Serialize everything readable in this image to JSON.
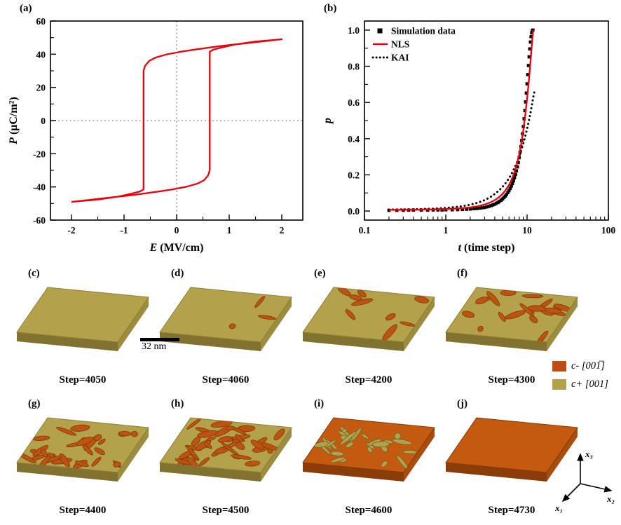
{
  "panel_labels": {
    "a": "(a)",
    "b": "(b)"
  },
  "scalebar": {
    "label": "32 nm"
  },
  "legend": {
    "items": [
      {
        "color": "#bf4c10",
        "label": "c- [001̅]"
      },
      {
        "color": "#b3a24b",
        "label": "c+ [001]"
      }
    ]
  },
  "axes_triad": {
    "x1": "x₁",
    "x2": "x₂",
    "x3": "x₃"
  },
  "colors": {
    "olive_top": "#b3a24b",
    "olive_front": "#82722f",
    "olive_side": "#9c8c3f",
    "olive_edge": "#8d7d33",
    "orange_top": "#c45a10",
    "orange_front": "#8a3d08",
    "orange_side": "#a84d0e",
    "orange_edge": "#7d3a07",
    "blob_orange": "#bc5310",
    "blob_orange_edge": "#7d3a07",
    "blob_olive": "#b3a24b",
    "blob_olive_edge": "#6e622a",
    "curve_red": "#e8000b",
    "dotted_gray": "#8a8a8a"
  },
  "panels": [
    {
      "id": "c",
      "label": "(c)",
      "step": "Step=4050",
      "base": "olive",
      "blobs": 0,
      "seed": 1
    },
    {
      "id": "d",
      "label": "(d)",
      "step": "Step=4060",
      "base": "olive",
      "blobs": 3,
      "seed": 7
    },
    {
      "id": "e",
      "label": "(e)",
      "step": "Step=4200",
      "base": "olive",
      "blobs": 9,
      "seed": 5
    },
    {
      "id": "f",
      "label": "(f)",
      "step": "Step=4300",
      "base": "olive",
      "blobs": 20,
      "seed": 11
    },
    {
      "id": "g",
      "label": "(g)",
      "step": "Step=4400",
      "base": "olive",
      "blobs": 30,
      "seed": 13
    },
    {
      "id": "h",
      "label": "(h)",
      "step": "Step=4500",
      "base": "olive",
      "blobs": 42,
      "seed": 17
    },
    {
      "id": "i",
      "label": "(i)",
      "step": "Step=4600",
      "base": "orange",
      "blobs": 28,
      "seed": 23
    },
    {
      "id": "j",
      "label": "(j)",
      "step": "Step=4730",
      "base": "orange",
      "blobs": 0,
      "seed": 29
    }
  ],
  "chart_data": [
    {
      "id": "hysteresis",
      "type": "line",
      "xlabel_var": "E",
      "xlabel_rest": " (MV/cm)",
      "ylabel_var": "P",
      "ylabel_rest": " (μC/m²)",
      "xlim": [
        -2.4,
        2.4
      ],
      "ylim": [
        -60,
        60
      ],
      "xticks": [
        -2,
        -1,
        0,
        1,
        2
      ],
      "yticks": [
        -60,
        -40,
        -20,
        0,
        20,
        40,
        60
      ],
      "zero_lines": true,
      "color": "#e8000b",
      "loop": [
        [
          -2,
          -49
        ],
        [
          -1.6,
          -47.6
        ],
        [
          -1.2,
          -46.2
        ],
        [
          -0.8,
          -44.8
        ],
        [
          -0.4,
          -43
        ],
        [
          -0.1,
          -41.6
        ],
        [
          0.2,
          -39.8
        ],
        [
          0.4,
          -38
        ],
        [
          0.52,
          -36
        ],
        [
          0.6,
          -33
        ],
        [
          0.63,
          -30
        ],
        [
          0.63,
          41.5
        ],
        [
          0.7,
          42.8
        ],
        [
          0.85,
          44
        ],
        [
          1.1,
          45.8
        ],
        [
          1.5,
          47.6
        ],
        [
          2,
          49
        ],
        [
          1.6,
          47.6
        ],
        [
          1.2,
          46.2
        ],
        [
          0.8,
          44.8
        ],
        [
          0.4,
          43
        ],
        [
          0.1,
          41.6
        ],
        [
          -0.2,
          39.8
        ],
        [
          -0.4,
          38
        ],
        [
          -0.52,
          36
        ],
        [
          -0.6,
          33
        ],
        [
          -0.63,
          30
        ],
        [
          -0.63,
          -41.5
        ],
        [
          -0.7,
          -42.8
        ],
        [
          -0.85,
          -44
        ],
        [
          -1.1,
          -45.8
        ],
        [
          -1.5,
          -47.6
        ],
        [
          -2,
          -49
        ]
      ]
    },
    {
      "id": "switching",
      "type": "line+scatter",
      "xlabel_var": "t",
      "xlabel_rest": " (time step)",
      "ylabel_var": "p",
      "ylabel_rest": "",
      "xscale": "log",
      "xlim": [
        0.1,
        100
      ],
      "ylim": [
        -0.05,
        1.05
      ],
      "xticks": [
        0.1,
        1,
        10,
        100
      ],
      "yticks": [
        0,
        0.2,
        0.4,
        0.6,
        0.8,
        1
      ],
      "legend": [
        "Simulation data",
        "NLS",
        "KAI"
      ],
      "series": [
        {
          "name": "Simulation data",
          "type": "scatter",
          "color": "#000000",
          "points": [
            [
              0.2,
              0.004
            ],
            [
              0.25,
              0.004
            ],
            [
              0.3,
              0.004
            ],
            [
              0.35,
              0.005
            ],
            [
              0.4,
              0.005
            ],
            [
              0.5,
              0.005
            ],
            [
              0.6,
              0.005
            ],
            [
              0.7,
              0.006
            ],
            [
              0.8,
              0.006
            ],
            [
              0.9,
              0.006
            ],
            [
              1.0,
              0.007
            ],
            [
              1.2,
              0.007
            ],
            [
              1.4,
              0.008
            ],
            [
              1.6,
              0.009
            ],
            [
              1.8,
              0.01
            ],
            [
              2.0,
              0.011
            ],
            [
              2.2,
              0.013
            ],
            [
              2.4,
              0.014
            ],
            [
              2.6,
              0.016
            ],
            [
              2.8,
              0.018
            ],
            [
              3.0,
              0.02
            ],
            [
              3.2,
              0.023
            ],
            [
              3.4,
              0.026
            ],
            [
              3.6,
              0.03
            ],
            [
              3.8,
              0.034
            ],
            [
              4.0,
              0.038
            ],
            [
              4.2,
              0.043
            ],
            [
              4.4,
              0.048
            ],
            [
              4.6,
              0.054
            ],
            [
              4.8,
              0.06
            ],
            [
              5.0,
              0.067
            ],
            [
              5.2,
              0.075
            ],
            [
              5.4,
              0.083
            ],
            [
              5.6,
              0.092
            ],
            [
              5.8,
              0.102
            ],
            [
              6.0,
              0.113
            ],
            [
              6.2,
              0.125
            ],
            [
              6.4,
              0.138
            ],
            [
              6.6,
              0.152
            ],
            [
              6.8,
              0.167
            ],
            [
              7.0,
              0.184
            ],
            [
              7.2,
              0.202
            ],
            [
              7.4,
              0.222
            ],
            [
              7.6,
              0.244
            ],
            [
              7.8,
              0.268
            ],
            [
              8.0,
              0.295
            ],
            [
              8.2,
              0.324
            ],
            [
              8.4,
              0.356
            ],
            [
              8.6,
              0.39
            ],
            [
              8.8,
              0.427
            ],
            [
              9.0,
              0.467
            ],
            [
              9.2,
              0.51
            ],
            [
              9.4,
              0.555
            ],
            [
              9.6,
              0.603
            ],
            [
              9.8,
              0.652
            ],
            [
              10.0,
              0.703
            ],
            [
              10.2,
              0.754
            ],
            [
              10.4,
              0.804
            ],
            [
              10.6,
              0.852
            ],
            [
              10.8,
              0.896
            ],
            [
              11.0,
              0.934
            ],
            [
              11.2,
              0.964
            ],
            [
              11.4,
              0.985
            ],
            [
              11.6,
              0.996
            ],
            [
              11.8,
              1.0
            ]
          ]
        },
        {
          "name": "NLS",
          "type": "line",
          "color": "#e8000b",
          "points": [
            [
              0.2,
              0.006
            ],
            [
              0.4,
              0.007
            ],
            [
              0.7,
              0.009
            ],
            [
              1.0,
              0.011
            ],
            [
              1.5,
              0.015
            ],
            [
              2.0,
              0.02
            ],
            [
              2.5,
              0.027
            ],
            [
              3.0,
              0.036
            ],
            [
              3.5,
              0.047
            ],
            [
              4.0,
              0.06
            ],
            [
              4.5,
              0.076
            ],
            [
              5.0,
              0.095
            ],
            [
              5.5,
              0.118
            ],
            [
              6.0,
              0.145
            ],
            [
              6.5,
              0.177
            ],
            [
              7.0,
              0.215
            ],
            [
              7.5,
              0.26
            ],
            [
              8.0,
              0.313
            ],
            [
              8.5,
              0.375
            ],
            [
              9.0,
              0.447
            ],
            [
              9.5,
              0.53
            ],
            [
              10.0,
              0.62
            ],
            [
              10.4,
              0.697
            ],
            [
              10.8,
              0.78
            ],
            [
              11.1,
              0.845
            ],
            [
              11.4,
              0.91
            ],
            [
              11.6,
              0.95
            ],
            [
              11.8,
              0.985
            ],
            [
              11.9,
              1.0
            ]
          ]
        },
        {
          "name": "KAI",
          "type": "dotted",
          "color": "#000000",
          "points": [
            [
              0.2,
              0.008
            ],
            [
              0.4,
              0.01
            ],
            [
              0.7,
              0.013
            ],
            [
              1.0,
              0.017
            ],
            [
              1.5,
              0.025
            ],
            [
              2.0,
              0.035
            ],
            [
              2.5,
              0.047
            ],
            [
              3.0,
              0.06
            ],
            [
              3.5,
              0.076
            ],
            [
              4.0,
              0.094
            ],
            [
              4.5,
              0.113
            ],
            [
              5.0,
              0.134
            ],
            [
              5.5,
              0.157
            ],
            [
              6.0,
              0.182
            ],
            [
              6.5,
              0.209
            ],
            [
              7.0,
              0.238
            ],
            [
              7.5,
              0.269
            ],
            [
              8.0,
              0.302
            ],
            [
              8.5,
              0.337
            ],
            [
              9.0,
              0.374
            ],
            [
              9.5,
              0.413
            ],
            [
              10.0,
              0.454
            ],
            [
              10.5,
              0.497
            ],
            [
              11.0,
              0.542
            ],
            [
              11.5,
              0.589
            ],
            [
              12.0,
              0.637
            ],
            [
              12.5,
              0.672
            ]
          ]
        }
      ]
    }
  ]
}
